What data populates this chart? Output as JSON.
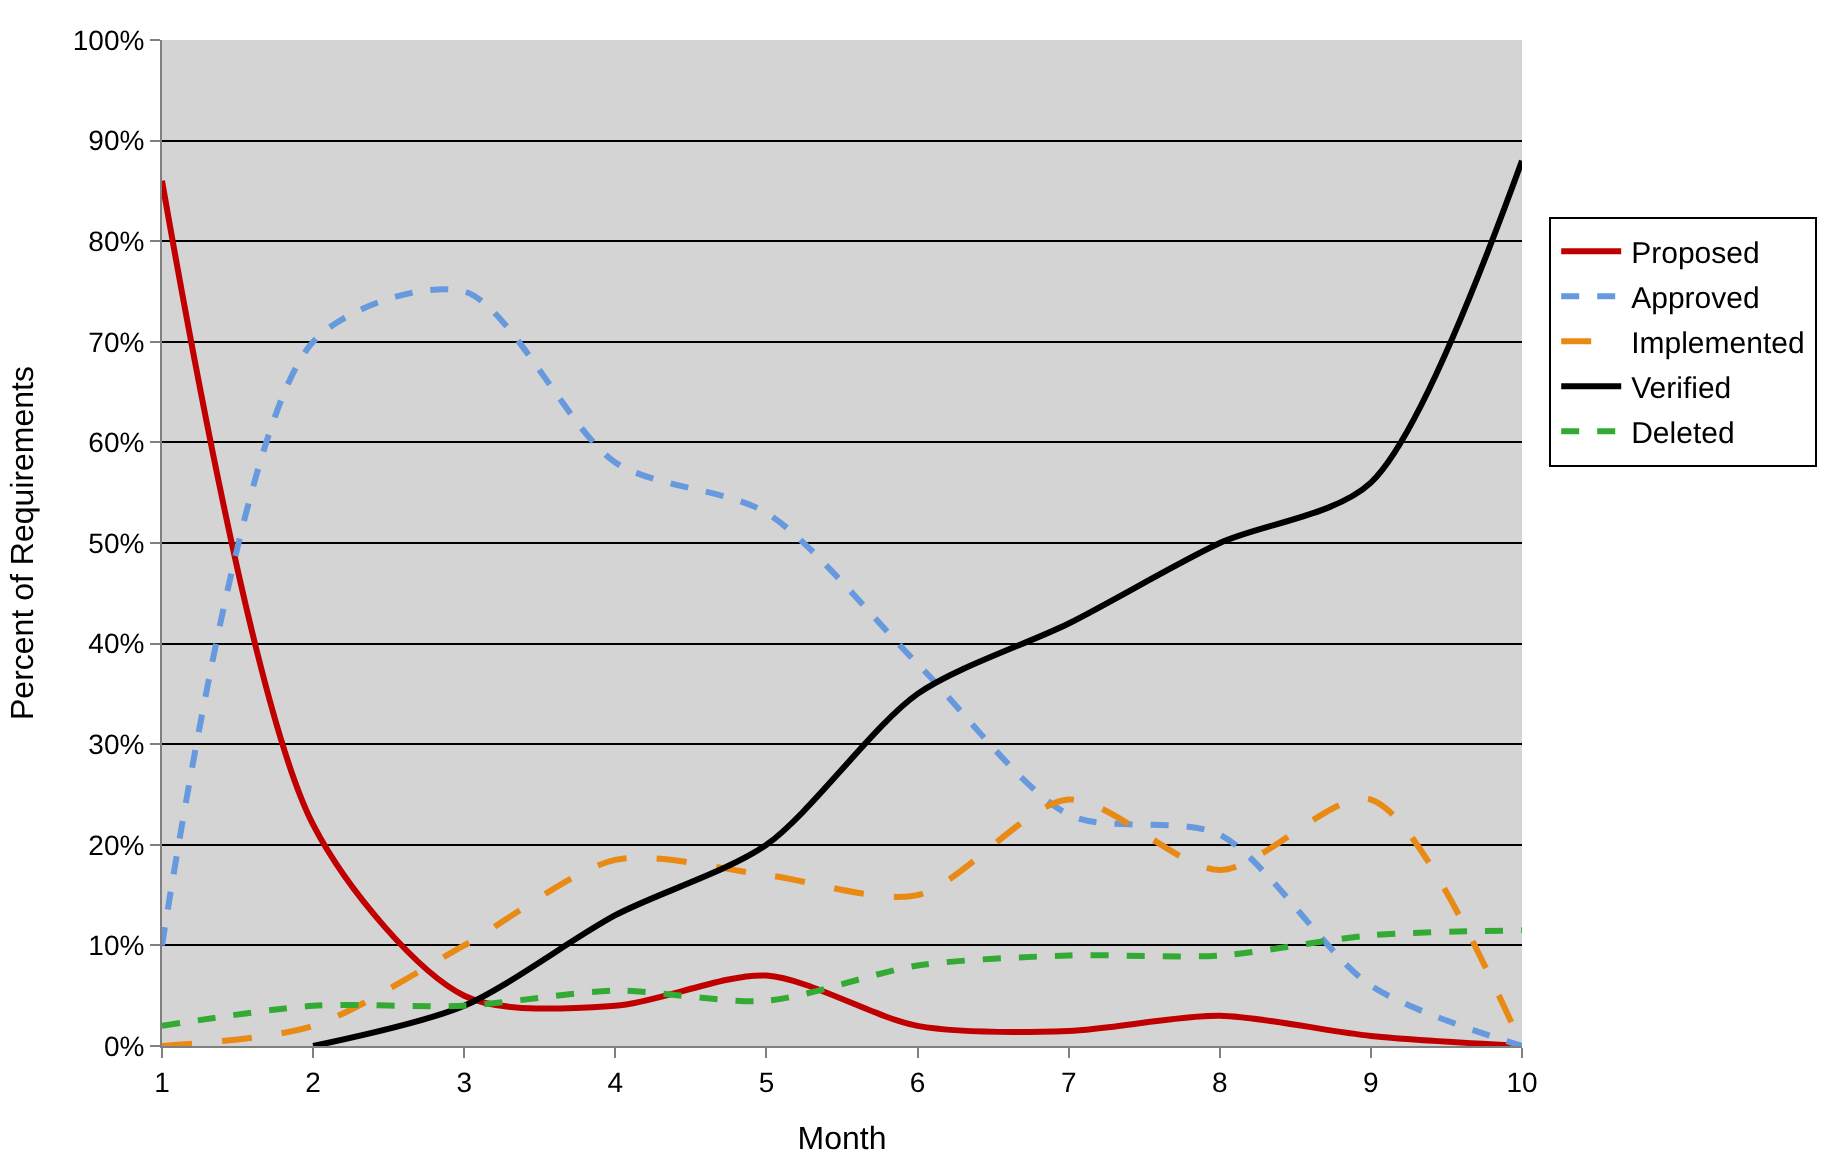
{
  "chart_data": {
    "type": "line",
    "xlabel": "Month",
    "ylabel": "Percent of Requirements",
    "x": [
      1,
      2,
      3,
      4,
      5,
      6,
      7,
      8,
      9,
      10
    ],
    "xlim": [
      1,
      10
    ],
    "xticks": [
      1,
      2,
      3,
      4,
      5,
      6,
      7,
      8,
      9,
      10
    ],
    "ylim": [
      0,
      100
    ],
    "yticks": [
      {
        "value": 0,
        "label": "0%"
      },
      {
        "value": 10,
        "label": "10%"
      },
      {
        "value": 20,
        "label": "20%"
      },
      {
        "value": 30,
        "label": "30%"
      },
      {
        "value": 40,
        "label": "40%"
      },
      {
        "value": 50,
        "label": "50%"
      },
      {
        "value": 60,
        "label": "60%"
      },
      {
        "value": 70,
        "label": "70%"
      },
      {
        "value": 80,
        "label": "80%"
      },
      {
        "value": 90,
        "label": "90%"
      },
      {
        "value": 100,
        "label": "100%"
      }
    ],
    "grid": "y",
    "legend": "right",
    "marker": "none",
    "series": [
      {
        "name": "Proposed",
        "color": "#c00000",
        "line_style": "solid",
        "values": [
          86,
          22,
          5,
          4,
          7,
          2,
          1.5,
          3,
          1,
          0
        ]
      },
      {
        "name": "Approved",
        "color": "#6699dd",
        "line_style": "dashed",
        "values": [
          10,
          70,
          75,
          58,
          53,
          38,
          23,
          21,
          6,
          0
        ]
      },
      {
        "name": "Implemented",
        "color": "#e98a15",
        "line_style": "dashed",
        "values": [
          0,
          2,
          10,
          18.5,
          17,
          15,
          24.5,
          17.5,
          24.5,
          0
        ]
      },
      {
        "name": "Verified",
        "color": "#000000",
        "line_style": "solid",
        "values": [
          null,
          0,
          4,
          13,
          20,
          35,
          42,
          50,
          56,
          88
        ]
      },
      {
        "name": "Deleted",
        "color": "#33aa33",
        "line_style": "dashed",
        "values": [
          2,
          4,
          4,
          5.5,
          4.5,
          8,
          9,
          9,
          11,
          11.5
        ]
      }
    ]
  }
}
